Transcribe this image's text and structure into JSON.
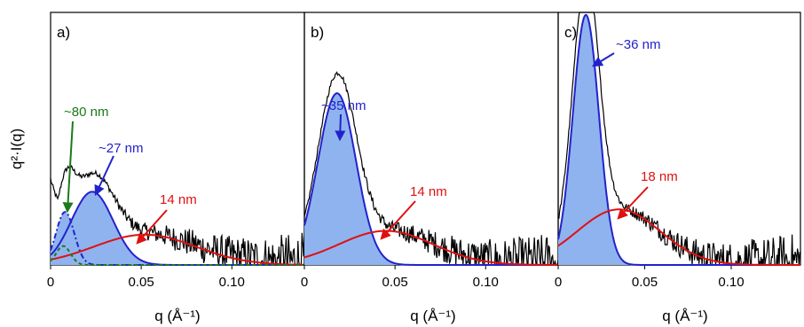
{
  "chart_data": [
    {
      "type": "area",
      "panel_label": "a)",
      "xlabel": "q (Å⁻¹)",
      "ylabel": "q²·I(q)",
      "xlim": [
        0,
        0.14
      ],
      "x_ticks": [
        "0",
        "0.05",
        "0.10"
      ],
      "x_tick_values": [
        0,
        0.05,
        0.1
      ],
      "components": [
        {
          "center": 0.008,
          "width": 0.005,
          "height": 0.21,
          "color": "#2222cc",
          "fill": "#8fb3ee",
          "style": "dashdot"
        },
        {
          "center": 0.023,
          "width": 0.0115,
          "height": 0.29,
          "color": "#2222cc",
          "fill": "#8fb3ee",
          "style": "solid"
        },
        {
          "center": 0.052,
          "width": 0.028,
          "height": 0.12,
          "color": "#e01010",
          "fill": "none",
          "style": "solid"
        }
      ],
      "peaks_green": [
        {
          "center": 0.007,
          "width": 0.004,
          "height": 0.075
        }
      ],
      "annotations": [
        {
          "text": "~80 nm",
          "color": "#1a7a1a"
        },
        {
          "text": "~27 nm",
          "color": "#2222cc"
        },
        {
          "text": "14 nm",
          "color": "#e01010"
        }
      ]
    },
    {
      "type": "area",
      "panel_label": "b)",
      "xlabel": "q (Å⁻¹)",
      "xlim": [
        0,
        0.14
      ],
      "x_ticks": [
        "0",
        "0.05",
        "0.10"
      ],
      "x_tick_values": [
        0,
        0.05,
        0.1
      ],
      "components": [
        {
          "center": 0.018,
          "width": 0.0105,
          "height": 0.68,
          "color": "#2222cc",
          "fill": "#8fb3ee",
          "style": "solid"
        },
        {
          "center": 0.045,
          "width": 0.026,
          "height": 0.135,
          "color": "#e01010",
          "fill": "none",
          "style": "solid"
        }
      ],
      "annotations": [
        {
          "text": "~35 nm",
          "color": "#2222cc"
        },
        {
          "text": "14 nm",
          "color": "#e01010"
        }
      ]
    },
    {
      "type": "area",
      "panel_label": "c)",
      "xlabel": "q (Å⁻¹)",
      "xlim": [
        0,
        0.14
      ],
      "x_ticks": [
        "0",
        "0.05",
        "0.10"
      ],
      "x_tick_values": [
        0,
        0.05,
        0.1
      ],
      "components": [
        {
          "center": 0.016,
          "width": 0.0075,
          "height": 0.99,
          "color": "#2222cc",
          "fill": "#8fb3ee",
          "style": "solid"
        },
        {
          "center": 0.035,
          "width": 0.024,
          "height": 0.22,
          "color": "#e01010",
          "fill": "none",
          "style": "solid"
        }
      ],
      "annotations": [
        {
          "text": "~36 nm",
          "color": "#2222cc"
        },
        {
          "text": "18 nm",
          "color": "#e01010"
        }
      ]
    }
  ]
}
